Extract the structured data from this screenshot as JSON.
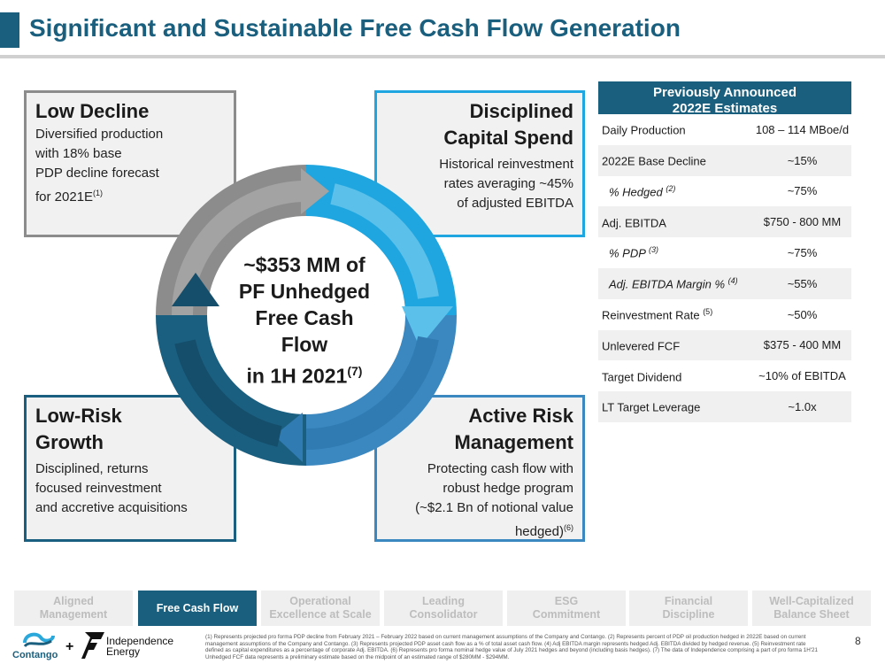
{
  "title": "Significant and Sustainable Free Cash Flow Generation",
  "boxes": {
    "top_left": {
      "heading": "Low Decline",
      "body_lines": [
        "Diversified production",
        "with 18% base",
        "PDP decline forecast"
      ],
      "body_last": "for 2021E",
      "body_last_sup": "(1)"
    },
    "top_right": {
      "heading_lines": [
        "Disciplined",
        "Capital Spend"
      ],
      "body_lines": [
        "Historical reinvestment",
        "rates averaging ~45%",
        "of adjusted EBITDA"
      ]
    },
    "bottom_left": {
      "heading_lines": [
        "Low-Risk",
        "Growth"
      ],
      "body_lines": [
        "Disciplined, returns",
        "focused reinvestment",
        "and accretive acquisitions"
      ]
    },
    "bottom_right": {
      "heading_lines": [
        "Active Risk",
        "Management"
      ],
      "body_lines": [
        "Protecting cash flow with",
        "robust hedge program",
        "(~$2.1 Bn of notional value"
      ],
      "body_last": "hedged)",
      "body_last_sup": "(6)"
    }
  },
  "center": {
    "lines": [
      "~$353 MM of",
      "PF Unhedged",
      "Free Cash",
      "Flow"
    ],
    "last": "in 1H 2021",
    "last_sup": "(7)"
  },
  "estimates": {
    "header_line1": "Previously Announced",
    "header_line2": "2022E Estimates",
    "rows": [
      {
        "label": "Daily Production",
        "sup": "",
        "value": "108 – 114 MBoe/d"
      },
      {
        "label": "2022E Base Decline",
        "sup": "",
        "value": "~15%"
      },
      {
        "label": "% Hedged",
        "sup": "(2)",
        "value": "~75%"
      },
      {
        "label": "Adj. EBITDA",
        "sup": "",
        "value": "$750 - 800 MM"
      },
      {
        "label": "% PDP",
        "sup": "(3)",
        "value": "~75%"
      },
      {
        "label": "Adj. EBITDA Margin %",
        "sup": "(4)",
        "value": "~55%"
      },
      {
        "label": "Reinvestment Rate",
        "sup": "(5)",
        "value": "~50%"
      },
      {
        "label": "Unlevered FCF",
        "sup": "",
        "value": "$375 - 400 MM"
      },
      {
        "label": "Target Dividend",
        "sup": "",
        "value": "~10% of EBITDA"
      },
      {
        "label": "LT Target Leverage",
        "sup": "",
        "value": "~1.0x"
      }
    ]
  },
  "nav": [
    {
      "line1": "Aligned",
      "line2": "Management",
      "active": false
    },
    {
      "line1": "Free Cash Flow",
      "line2": "",
      "active": true
    },
    {
      "line1": "Operational",
      "line2": "Excellence at Scale",
      "active": false
    },
    {
      "line1": "Leading",
      "line2": "Consolidator",
      "active": false
    },
    {
      "line1": "ESG",
      "line2": "Commitment",
      "active": false
    },
    {
      "line1": "Financial",
      "line2": "Discipline",
      "active": false
    },
    {
      "line1": "Well-Capitalized",
      "line2": "Balance Sheet",
      "active": false
    }
  ],
  "logos": {
    "contango": "Contango",
    "plus": "+",
    "independence_line1": "Independence",
    "independence_line2": "Energy"
  },
  "footnote": "(1) Represents projected pro forma PDP decline from February 2021 – February 2022 based on current management assumptions of the Company and Contango. (2) Represents percent of PDP oil production hedged in 2022E based on current management assumptions of the Company and Contango. (3) Represents projected PDP asset cash flow as a % of total asset cash flow. (4) Adj EBITDA margin represents hedged Adj. EBITDA divided by hedged revenue. (5) Reinvestment rate defined as capital expenditures as a percentage of corporate Adj. EBITDA. (6) Represents pro forma nominal hedge value of July 2021 hedges and beyond (including basis hedges). (7) The data of Independence comprising a part of pro forma 1H'21 Unhedged FCF data represents a preliminary estimate based on the midpoint of an estimated range of $280MM - $294MM.",
  "page_number": "8",
  "colors": {
    "brand_dark": "#1a5f7e",
    "light_blue": "#1fa6e0",
    "mid_blue": "#3b87c0",
    "grey": "#8c8c8c"
  }
}
